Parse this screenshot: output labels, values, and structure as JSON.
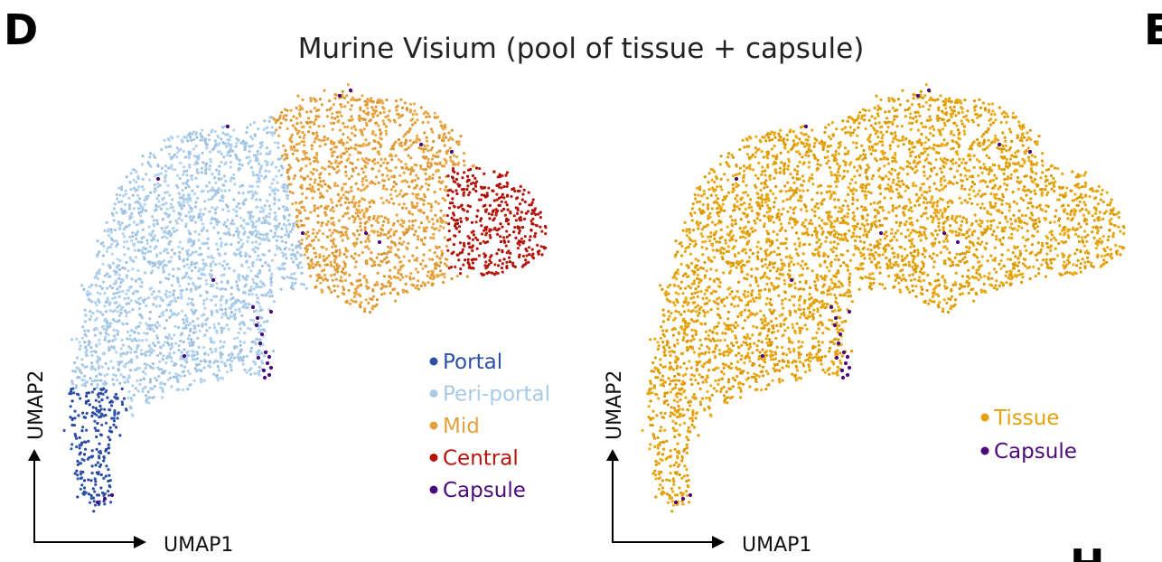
{
  "figure": {
    "panel_letter": "D",
    "next_panel_letter": "E",
    "bottom_panel_letter": "H",
    "title": "Murine Visium (pool of tissue + capsule)"
  },
  "chart_data": [
    {
      "type": "scatter",
      "title": "",
      "xlabel": "UMAP1",
      "ylabel": "UMAP2",
      "grid": false,
      "legend_position": "bottom-right",
      "colored_by": "zonation",
      "series": [
        {
          "name": "Portal",
          "color": "#2c4fa6"
        },
        {
          "name": "Peri-portal",
          "color": "#aacbe8"
        },
        {
          "name": "Mid",
          "color": "#e3a03e"
        },
        {
          "name": "Central",
          "color": "#b3150c"
        },
        {
          "name": "Capsule",
          "color": "#4b0a7a"
        }
      ]
    },
    {
      "type": "scatter",
      "title": "",
      "xlabel": "UMAP1",
      "ylabel": "UMAP2",
      "grid": false,
      "legend_position": "bottom-right",
      "colored_by": "sample",
      "series": [
        {
          "name": "Tissue",
          "color": "#e3a20c"
        },
        {
          "name": "Capsule",
          "color": "#4b0a7a"
        }
      ]
    }
  ]
}
